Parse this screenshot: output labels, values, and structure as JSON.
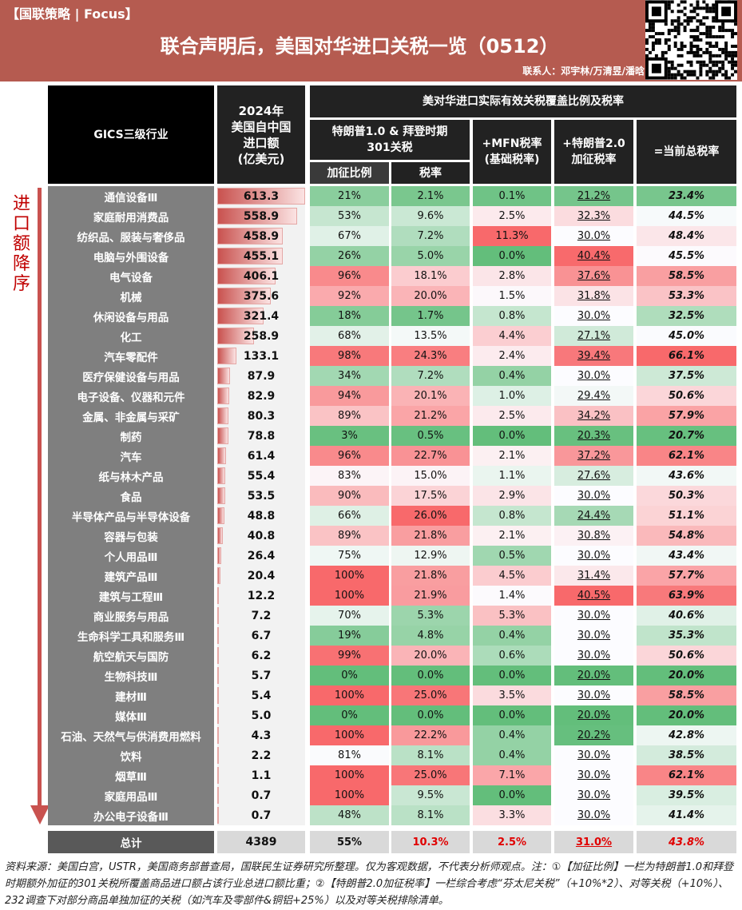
{
  "header": {
    "tag": "【国联策略 | Focus】",
    "title": "联合声明后，美国对华进口关税一览（0512）",
    "contact": "联系人：邓宇林/万清昱/潘晗"
  },
  "side_label": "进口额降序",
  "columns": {
    "industry": "GICS三级行业",
    "import": "2024年\n美国自中国\n进口额\n(亿美元)",
    "group": "美对华进口实际有效关税覆盖比例及税率",
    "s301": "特朗普1.0 & 拜登时期\n301关税",
    "ratio": "加征比例",
    "rate": "税率",
    "mfn": "+MFN税率\n(基础税率)",
    "t2": "+特朗普2.0\n加征税率",
    "total": "=当前总税率"
  },
  "colors": {
    "banner": "#B55B50",
    "low": "#63BE7B",
    "mid": "#FCFCFF",
    "high": "#F8696B",
    "bar": "#C9524F"
  },
  "chart_data": {
    "type": "table",
    "rows": [
      [
        "通信设备Ⅲ",
        "613.3",
        "21%",
        "2.1%",
        "0.1%",
        "21.2%",
        "23.4%"
      ],
      [
        "家庭耐用消费品",
        "558.9",
        "53%",
        "9.6%",
        "2.5%",
        "32.3%",
        "44.5%"
      ],
      [
        "纺织品、服装与奢侈品",
        "458.9",
        "67%",
        "7.2%",
        "11.3%",
        "30.0%",
        "48.4%"
      ],
      [
        "电脑与外围设备",
        "455.1",
        "26%",
        "5.0%",
        "0.0%",
        "40.4%",
        "45.5%"
      ],
      [
        "电气设备",
        "406.1",
        "96%",
        "18.1%",
        "2.8%",
        "37.6%",
        "58.5%"
      ],
      [
        "机械",
        "375.6",
        "92%",
        "20.0%",
        "1.5%",
        "31.8%",
        "53.3%"
      ],
      [
        "休闲设备与用品",
        "321.4",
        "18%",
        "1.7%",
        "0.8%",
        "30.0%",
        "32.5%"
      ],
      [
        "化工",
        "258.9",
        "68%",
        "13.5%",
        "4.4%",
        "27.1%",
        "45.0%"
      ],
      [
        "汽车零配件",
        "133.1",
        "98%",
        "24.3%",
        "2.4%",
        "39.4%",
        "66.1%"
      ],
      [
        "医疗保健设备与用品",
        "87.9",
        "34%",
        "7.2%",
        "0.4%",
        "30.0%",
        "37.5%"
      ],
      [
        "电子设备、仪器和元件",
        "82.9",
        "94%",
        "20.1%",
        "1.0%",
        "29.4%",
        "50.6%"
      ],
      [
        "金属、非金属与采矿",
        "80.3",
        "89%",
        "21.2%",
        "2.5%",
        "34.2%",
        "57.9%"
      ],
      [
        "制药",
        "78.8",
        "3%",
        "0.5%",
        "0.0%",
        "20.3%",
        "20.7%"
      ],
      [
        "汽车",
        "61.4",
        "96%",
        "22.7%",
        "2.1%",
        "37.2%",
        "62.1%"
      ],
      [
        "纸与林木产品",
        "55.4",
        "83%",
        "15.0%",
        "1.1%",
        "27.6%",
        "43.6%"
      ],
      [
        "食品",
        "53.5",
        "90%",
        "17.5%",
        "2.9%",
        "30.0%",
        "50.3%"
      ],
      [
        "半导体产品与半导体设备",
        "48.8",
        "66%",
        "26.0%",
        "0.8%",
        "24.4%",
        "51.1%"
      ],
      [
        "容器与包装",
        "40.8",
        "89%",
        "21.8%",
        "2.1%",
        "30.8%",
        "54.8%"
      ],
      [
        "个人用品Ⅲ",
        "26.4",
        "75%",
        "12.9%",
        "0.5%",
        "30.0%",
        "43.4%"
      ],
      [
        "建筑产品Ⅲ",
        "20.4",
        "100%",
        "21.8%",
        "4.5%",
        "31.4%",
        "57.7%"
      ],
      [
        "建筑与工程Ⅲ",
        "12.2",
        "100%",
        "21.9%",
        "1.4%",
        "40.5%",
        "63.9%"
      ],
      [
        "商业服务与用品",
        "7.2",
        "70%",
        "5.3%",
        "5.3%",
        "30.0%",
        "40.6%"
      ],
      [
        "生命科学工具和服务Ⅲ",
        "6.7",
        "19%",
        "4.8%",
        "0.4%",
        "30.0%",
        "35.3%"
      ],
      [
        "航空航天与国防",
        "6.2",
        "99%",
        "20.0%",
        "0.6%",
        "30.0%",
        "50.6%"
      ],
      [
        "生物科技Ⅲ",
        "5.7",
        "0%",
        "0.0%",
        "0.0%",
        "20.0%",
        "20.0%"
      ],
      [
        "建材Ⅲ",
        "5.4",
        "100%",
        "25.0%",
        "3.5%",
        "30.0%",
        "58.5%"
      ],
      [
        "媒体Ⅲ",
        "5.0",
        "0%",
        "0.0%",
        "0.0%",
        "20.0%",
        "20.0%"
      ],
      [
        "石油、天然气与供消费用燃料",
        "4.3",
        "100%",
        "22.2%",
        "0.4%",
        "20.2%",
        "42.8%"
      ],
      [
        "饮料",
        "2.2",
        "81%",
        "8.1%",
        "0.4%",
        "30.0%",
        "38.5%"
      ],
      [
        "烟草Ⅲ",
        "1.1",
        "100%",
        "25.0%",
        "7.1%",
        "30.0%",
        "62.1%"
      ],
      [
        "家庭用品Ⅲ",
        "0.7",
        "100%",
        "9.5%",
        "0.0%",
        "30.0%",
        "39.5%"
      ],
      [
        "办公电子设备Ⅲ",
        "0.7",
        "48%",
        "8.1%",
        "3.3%",
        "30.0%",
        "41.4%"
      ]
    ],
    "total": [
      "总计",
      "4389",
      "55%",
      "10.3%",
      "2.5%",
      "31.0%",
      "43.8%"
    ]
  },
  "footnote": "资料来源：美国白宫，USTR，美国商务部普查局，国联民生证券研究所整理。仅为客观数据，不代表分析师观点。注：①【加征比例】一栏为特朗普1.0和拜登时期额外加征的301关税所覆盖商品进口额占该行业总进口额比重；②【特朗普2.0加征税率】一栏综合考虑“芬太尼关税”（+10%*2）、对等关税（+10%）、232调查下对部分商品单独加征的关税（如汽车及零部件&铜铝+25%）以及对等关税排除清单。"
}
